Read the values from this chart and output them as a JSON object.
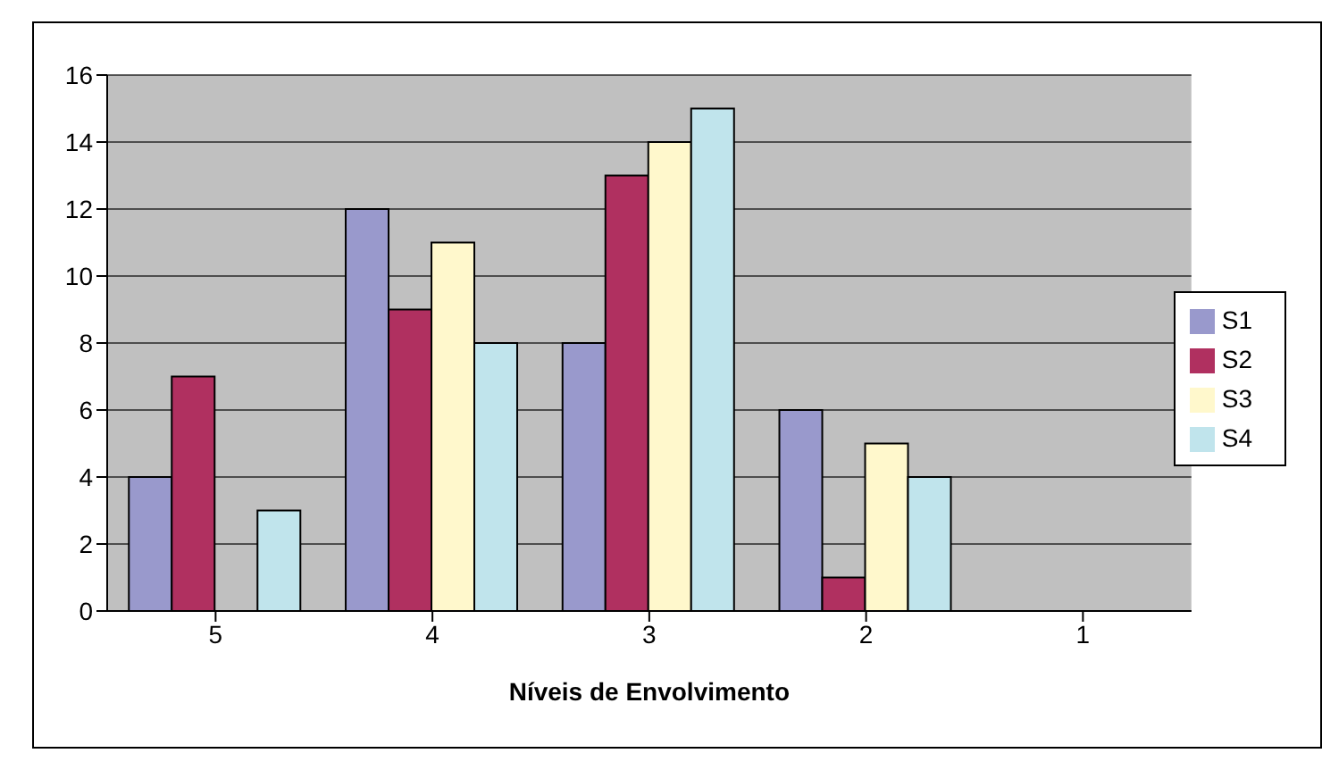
{
  "chart_data": {
    "type": "bar",
    "xlabel": "Níveis de Envolvimento",
    "categories": [
      "5",
      "4",
      "3",
      "2",
      "1"
    ],
    "series": [
      {
        "name": "S1",
        "color": "#9999cc",
        "values": [
          4,
          12,
          8,
          6,
          0
        ]
      },
      {
        "name": "S2",
        "color": "#b03060",
        "values": [
          7,
          9,
          13,
          1,
          0
        ]
      },
      {
        "name": "S3",
        "color": "#fff8cc",
        "values": [
          0,
          11,
          14,
          5,
          0
        ]
      },
      {
        "name": "S4",
        "color": "#c0e4ec",
        "values": [
          3,
          8,
          15,
          4,
          0
        ]
      }
    ],
    "ylim": [
      0,
      16
    ],
    "yticks": [
      0,
      2,
      4,
      6,
      8,
      10,
      12,
      14,
      16
    ],
    "grid": "y",
    "legend": "right"
  }
}
